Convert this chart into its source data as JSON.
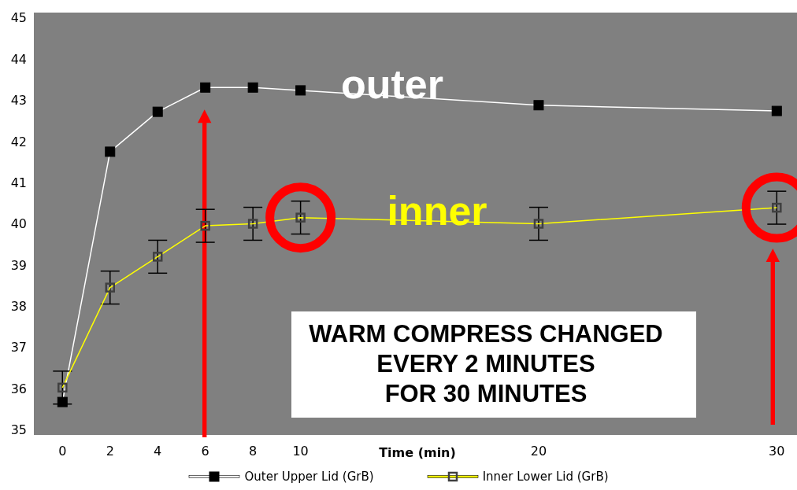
{
  "chart_data": {
    "type": "line",
    "x": [
      0,
      2,
      4,
      6,
      8,
      10,
      20,
      30
    ],
    "xlabel": "Time (min)",
    "xlim": [
      -1.2,
      30.85
    ],
    "xticks": [
      0,
      2,
      4,
      6,
      8,
      10,
      20,
      30
    ],
    "ylim": [
      34.87,
      45.13
    ],
    "yticks": [
      35,
      36,
      37,
      38,
      39,
      40,
      41,
      42,
      43,
      44,
      45
    ],
    "series": [
      {
        "name": "Outer Upper Lid (GrB)",
        "color": "#ffffff",
        "values": [
          35.67,
          41.75,
          42.72,
          43.31,
          43.31,
          43.24,
          42.88,
          42.74
        ]
      },
      {
        "name": "Inner Lower Lid (GrB)",
        "color": "#ffff00",
        "values": [
          36.02,
          38.45,
          39.2,
          39.95,
          40.0,
          40.15,
          40.0,
          40.39
        ],
        "errors": [
          0.4,
          0.4,
          0.4,
          0.4,
          0.4,
          0.4,
          0.4,
          0.4
        ]
      }
    ],
    "marker": "square",
    "legend": "bottom",
    "annotations": [
      "outer",
      "inner",
      "WARM COMPRESS CHANGED\nEVERY 2 MINUTES\nFOR 30 MINUTES"
    ]
  }
}
